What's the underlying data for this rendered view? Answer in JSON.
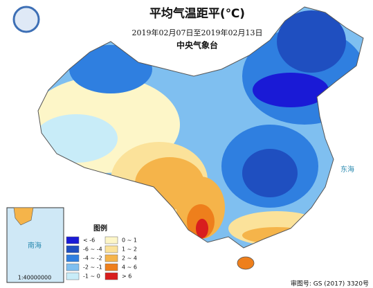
{
  "header": {
    "title": "平均气温距平(℃)",
    "date_range": "2019年02月07日至2019年02月13日",
    "issuer": "中央气象台"
  },
  "map": {
    "sea_labels": [
      "东海",
      "南海"
    ]
  },
  "inset": {
    "label": "南海",
    "scale": "1:40000000"
  },
  "legend": {
    "title": "图例",
    "items": [
      {
        "label": "< -6",
        "color": "#1a1ad6"
      },
      {
        "label": "-6 ~ -4",
        "color": "#1f4fc0"
      },
      {
        "label": "-4 ~ -2",
        "color": "#2f7fe0"
      },
      {
        "label": "-2 ~ -1",
        "color": "#7fbff0"
      },
      {
        "label": "-1 ~ 0",
        "color": "#c8ecf8"
      },
      {
        "label": "0 ~ 1",
        "color": "#fdf6c8"
      },
      {
        "label": "1 ~ 2",
        "color": "#fbe29a"
      },
      {
        "label": "2 ~ 4",
        "color": "#f5b44a"
      },
      {
        "label": "4 ~ 6",
        "color": "#ee7f1c"
      },
      {
        "label": "> 6",
        "color": "#d81e1e"
      }
    ]
  },
  "footer": {
    "approval": "审图号: GS (2017) 3320号"
  }
}
